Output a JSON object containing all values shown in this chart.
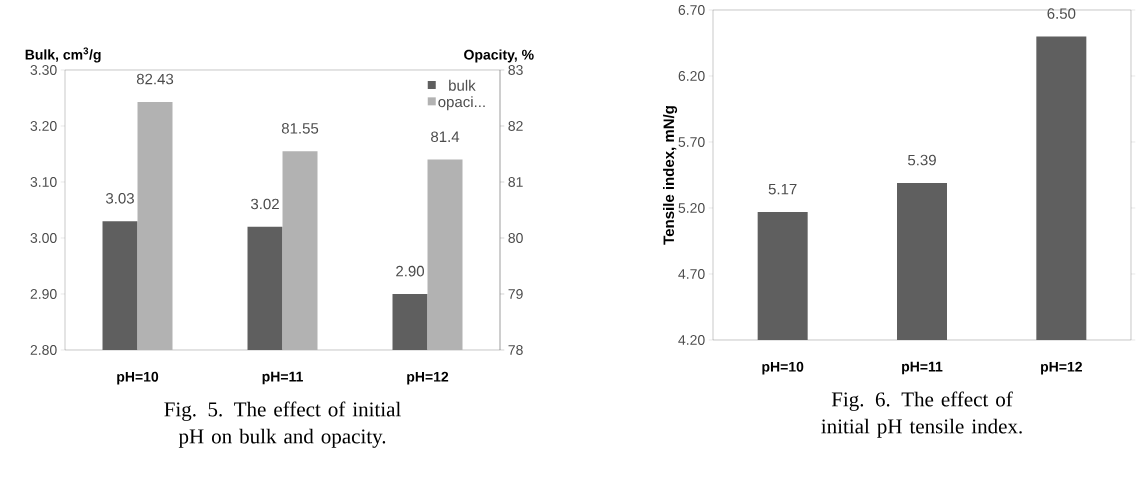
{
  "chart_data": [
    {
      "type": "bar",
      "categories": [
        "pH=10",
        "pH=11",
        "pH=12"
      ],
      "series": [
        {
          "name": "bulk",
          "color": "#5f5f5f",
          "values": [
            3.03,
            3.02,
            2.9
          ],
          "value_labels": [
            "3.03",
            "3.02",
            "2.90"
          ]
        },
        {
          "name": "opaci...",
          "color": "#b2b2b2",
          "axis": "y2",
          "values": [
            82.43,
            81.55,
            81.4
          ],
          "value_labels": [
            "82.43",
            "81.55",
            "81.4"
          ]
        }
      ],
      "ylabel": "Bulk, cm$^{3}$/g",
      "y2label": "Opacity, %",
      "ylim": [
        2.8,
        3.3
      ],
      "yticks": [
        {
          "value": 2.8,
          "label": "2.80"
        },
        {
          "value": 2.9,
          "label": "2.90"
        },
        {
          "value": 3.0,
          "label": "3.00"
        },
        {
          "value": 3.1,
          "label": "3.10"
        },
        {
          "value": 3.2,
          "label": "3.20"
        },
        {
          "value": 3.3,
          "label": "3.30"
        }
      ],
      "y2lim": [
        78,
        83
      ],
      "y2ticks": [
        78,
        79,
        80,
        81,
        82,
        83
      ],
      "legend": "top right",
      "annotations": [
        "Fig. 5.   The effect of initial pH on bulk and opacity."
      ]
    },
    {
      "type": "bar",
      "categories": [
        "pH=10",
        "pH=11",
        "pH=12"
      ],
      "values": [
        5.17,
        5.39,
        6.5
      ],
      "value_labels": [
        "5.17",
        "5.39",
        "6.50"
      ],
      "color": "#5f5f5f",
      "ylabel": "Tensile index, mN/g",
      "ylim": [
        4.2,
        6.7
      ],
      "yticks": [
        {
          "value": 4.2,
          "label": "4.20"
        },
        {
          "value": 4.7,
          "label": "4.70"
        },
        {
          "value": 5.2,
          "label": "5.20"
        },
        {
          "value": 5.7,
          "label": "5.70"
        },
        {
          "value": 6.2,
          "label": "6.20"
        },
        {
          "value": 6.7,
          "label": "6.70"
        }
      ],
      "annotations": [
        "Fig. 6.   The effect of initial pH tensile index."
      ]
    }
  ]
}
